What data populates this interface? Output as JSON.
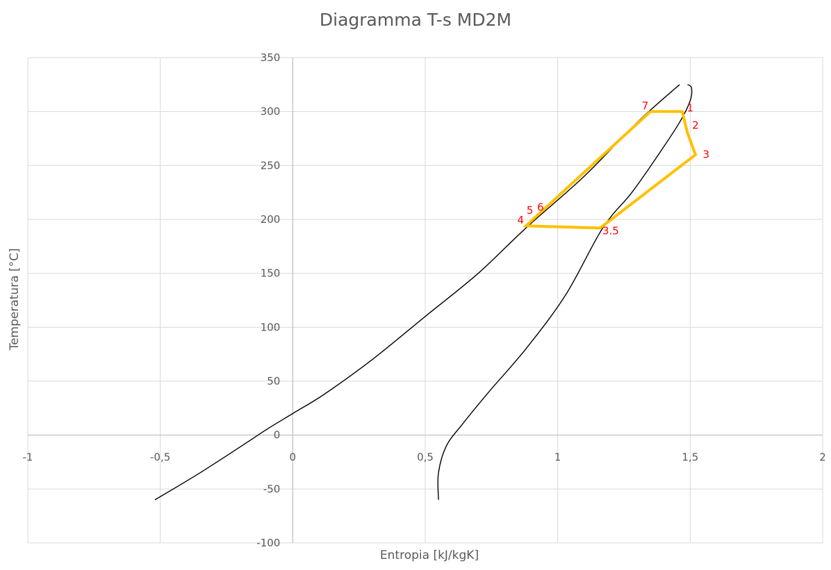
{
  "chart_data": {
    "type": "line",
    "title": "Diagramma T-s MD2M",
    "xlabel": "Entropia [kJ/kgK]",
    "ylabel": "Temperatura [°C]",
    "xlim": [
      -1,
      2
    ],
    "ylim": [
      -100,
      350
    ],
    "x_ticks": [
      -1,
      -0.5,
      0,
      0.5,
      1,
      1.5,
      2
    ],
    "x_tick_labels": [
      "-1",
      "-0,5",
      "0",
      "0,5",
      "1",
      "1,5",
      "2"
    ],
    "y_ticks": [
      -100,
      -50,
      0,
      50,
      100,
      150,
      200,
      250,
      300,
      350
    ],
    "y_tick_labels": [
      "-100",
      "-50",
      "0",
      "50",
      "100",
      "150",
      "200",
      "250",
      "300",
      "350"
    ],
    "grid": true,
    "legend": "none",
    "colors": {
      "curve": "#000000",
      "cycle": "#ffc000",
      "point_labels": "#ff0000",
      "grid": "#d9d9d9",
      "text": "#595959"
    },
    "series": [
      {
        "kind": "saturation-liquid",
        "x": [
          -0.52,
          -0.35,
          -0.18,
          -0.1,
          0.0,
          0.12,
          0.3,
          0.5,
          0.7,
          0.88,
          1.1,
          1.3,
          1.46
        ],
        "y": [
          -60,
          -35,
          -8,
          5,
          20,
          38,
          70,
          110,
          150,
          192,
          240,
          290,
          325
        ]
      },
      {
        "kind": "saturation-vapor",
        "x": [
          0.55,
          0.55,
          0.58,
          0.64,
          0.74,
          0.88,
          1.03,
          1.17,
          1.28,
          1.38,
          1.46,
          1.5,
          1.505,
          1.49
        ],
        "y": [
          -60,
          -35,
          -10,
          10,
          40,
          80,
          130,
          192,
          225,
          260,
          290,
          310,
          322,
          325
        ]
      },
      {
        "kind": "cycle",
        "x": [
          1.35,
          1.47,
          1.49,
          1.52,
          1.16,
          0.88,
          1.35
        ],
        "y": [
          300,
          300,
          280,
          260,
          192,
          194,
          300
        ]
      }
    ],
    "point_labels": [
      {
        "text": "1",
        "x": 1.5,
        "y": 300
      },
      {
        "text": "2",
        "x": 1.52,
        "y": 284
      },
      {
        "text": "3",
        "x": 1.56,
        "y": 257
      },
      {
        "text": "3.5",
        "x": 1.2,
        "y": 186
      },
      {
        "text": "4",
        "x": 0.86,
        "y": 196
      },
      {
        "text": "5",
        "x": 0.895,
        "y": 205
      },
      {
        "text": "6",
        "x": 0.935,
        "y": 208
      },
      {
        "text": "7",
        "x": 1.33,
        "y": 302
      }
    ]
  }
}
